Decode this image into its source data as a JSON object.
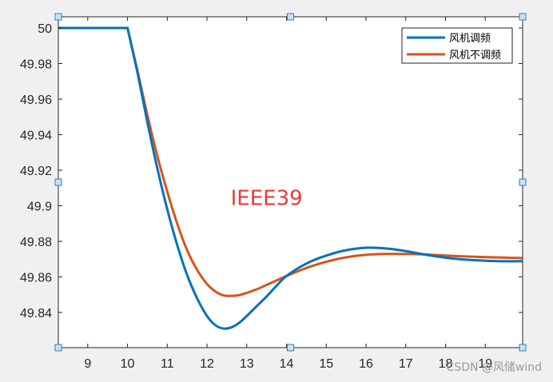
{
  "chart_data": {
    "type": "line",
    "title": "",
    "xlabel": "",
    "ylabel": "",
    "xlim": [
      8.26,
      19.94
    ],
    "ylim": [
      49.8202,
      50.0063
    ],
    "xticks": [
      9,
      10,
      11,
      12,
      13,
      14,
      15,
      16,
      17,
      18,
      19
    ],
    "yticks": [
      49.84,
      49.86,
      49.88,
      49.9,
      49.92,
      49.94,
      49.96,
      49.98,
      50
    ],
    "ytick_labels": [
      "49.84",
      "49.86",
      "49.88",
      "49.9",
      "49.92",
      "49.94",
      "49.96",
      "49.98",
      "50"
    ],
    "grid": false,
    "legend_position": "top-right",
    "annotation": {
      "text": "IEEE39",
      "x": 13.5,
      "y": 49.905,
      "color": "#e8393a"
    },
    "x": [
      8.26,
      10,
      10.25,
      10.5,
      10.75,
      11,
      11.25,
      11.5,
      11.75,
      12,
      12.2,
      12.4,
      12.6,
      12.8,
      13,
      13.25,
      13.5,
      13.75,
      14,
      14.5,
      15,
      15.5,
      16,
      16.5,
      17,
      17.5,
      18,
      18.5,
      19,
      19.5,
      19.94
    ],
    "series": [
      {
        "name": "风机调频",
        "color": "#0072bd",
        "values": [
          50,
          50,
          49.975,
          49.947,
          49.921,
          49.898,
          49.878,
          49.861,
          49.848,
          49.838,
          49.833,
          49.831,
          49.8315,
          49.834,
          49.838,
          49.8435,
          49.849,
          49.855,
          49.8605,
          49.8675,
          49.872,
          49.875,
          49.8764,
          49.876,
          49.8745,
          49.8725,
          49.8708,
          49.8697,
          49.8691,
          49.8688,
          49.8688
        ]
      },
      {
        "name": "风机不调频",
        "color": "#d95319",
        "values": [
          50,
          50,
          49.976,
          49.951,
          49.928,
          49.908,
          49.89,
          49.875,
          49.864,
          49.856,
          49.852,
          49.8497,
          49.8493,
          49.8497,
          49.851,
          49.853,
          49.8555,
          49.858,
          49.8605,
          49.865,
          49.8685,
          49.871,
          49.8724,
          49.8729,
          49.8729,
          49.8726,
          49.872,
          49.8715,
          49.8711,
          49.8708,
          49.8706
        ]
      }
    ]
  },
  "watermark": "CSDN @风储wind"
}
